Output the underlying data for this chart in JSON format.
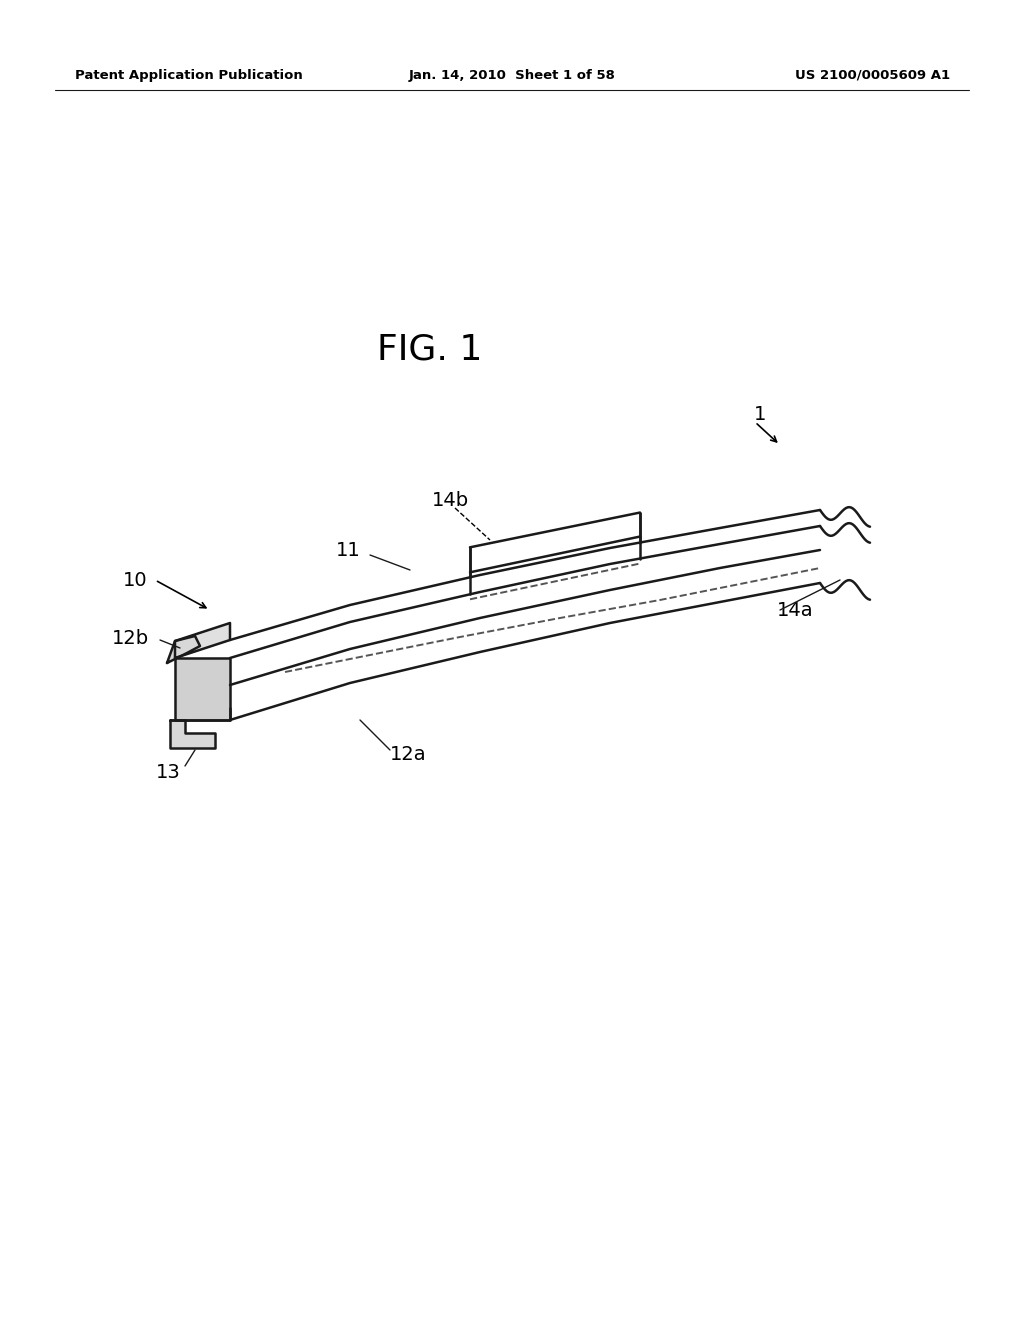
{
  "background_color": "#ffffff",
  "line_color": "#1a1a1a",
  "header_left": "Patent Application Publication",
  "header_center": "Jan. 14, 2010  Sheet 1 of 58",
  "header_right": "US 2100/0005609 A1",
  "figure_title": "FIG. 1"
}
